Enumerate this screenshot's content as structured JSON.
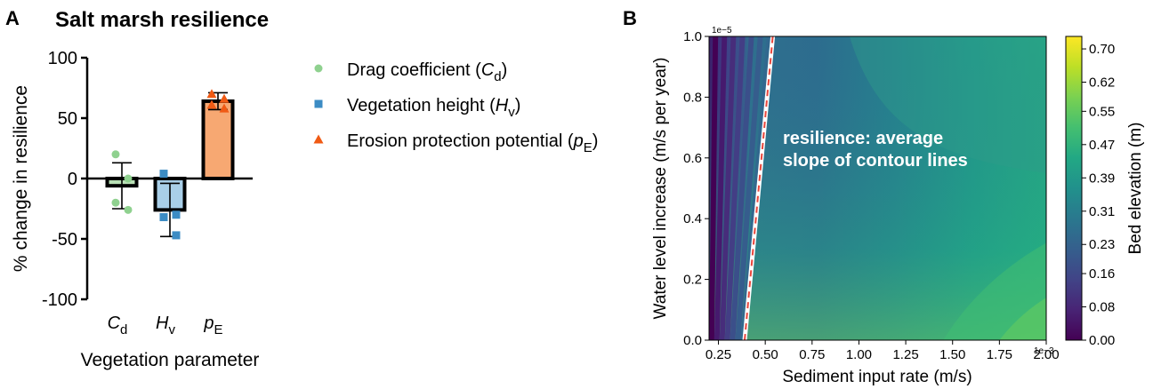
{
  "panels": {
    "a_letter": "A",
    "b_letter": "B"
  },
  "chart_data": [
    {
      "type": "bar",
      "title": "Salt marsh resilience",
      "xlabel": "Vegetation parameter",
      "ylabel": "% change in resilience",
      "ylim": [
        -100,
        100
      ],
      "yticks": [
        "100",
        "50",
        "0",
        "-50",
        "-100"
      ],
      "ytick_values": [
        100,
        50,
        0,
        -50,
        -100
      ],
      "categories": [
        {
          "main": "C",
          "sub": "d"
        },
        {
          "main": "H",
          "sub": "v"
        },
        {
          "main": "p",
          "sub": "E"
        }
      ],
      "values": [
        -6,
        -26,
        64
      ],
      "error": [
        19,
        22,
        7
      ],
      "bar_colors": [
        "#b9e0b6",
        "#a9cfe8",
        "#f7a872"
      ],
      "points": [
        [
          20,
          0,
          -20,
          -26
        ],
        [
          4,
          -30,
          -32,
          -47
        ],
        [
          70,
          66,
          61,
          58
        ]
      ],
      "point_colors": [
        "#8fd18f",
        "#3c8cc4",
        "#f05a14"
      ],
      "point_markers": [
        "circle",
        "square",
        "triangle"
      ],
      "legend": [
        {
          "label": "Drag coefficient (",
          "sym": "C",
          "sub": "d",
          "close": ")",
          "marker": "circle",
          "color": "#8fd18f"
        },
        {
          "label": "Vegetation height (",
          "sym": "H",
          "sub": "v",
          "close": ")",
          "marker": "square",
          "color": "#3c8cc4"
        },
        {
          "label": "Erosion protection potential (",
          "sym": "p",
          "sub": "E",
          "close": ")",
          "marker": "triangle",
          "color": "#f05a14"
        }
      ]
    },
    {
      "type": "heatmap",
      "xlabel": "Sediment input rate (m/s)",
      "ylabel": "Water level increase (m/s per year)",
      "x_multiplier": "1e−3",
      "y_multiplier": "1e−5",
      "xlim": [
        0.2,
        2.0
      ],
      "ylim": [
        0.0,
        1.0
      ],
      "xticks": [
        "0.25",
        "0.50",
        "0.75",
        "1.00",
        "1.25",
        "1.50",
        "1.75",
        "2.00"
      ],
      "xtick_values": [
        0.25,
        0.5,
        0.75,
        1.0,
        1.25,
        1.5,
        1.75,
        2.0
      ],
      "yticks": [
        "0.0",
        "0.2",
        "0.4",
        "0.6",
        "0.8",
        "1.0"
      ],
      "ytick_values": [
        0.0,
        0.2,
        0.4,
        0.6,
        0.8,
        1.0
      ],
      "colorbar_label": "Bed elevation (m)",
      "colorbar_ticks": [
        "0.00",
        "0.08",
        "0.16",
        "0.23",
        "0.31",
        "0.39",
        "0.47",
        "0.55",
        "0.62",
        "0.70"
      ],
      "colorbar_values": [
        0.0,
        0.08,
        0.16,
        0.23,
        0.31,
        0.39,
        0.47,
        0.55,
        0.62,
        0.7
      ],
      "colorbar_max": 0.73,
      "annotation_line1": "resilience: average",
      "annotation_line2": "slope of contour lines",
      "dashed_line": {
        "x": [
          0.39,
          0.54
        ],
        "y": [
          0.0,
          1.0
        ],
        "color": "#e8463c"
      }
    }
  ]
}
